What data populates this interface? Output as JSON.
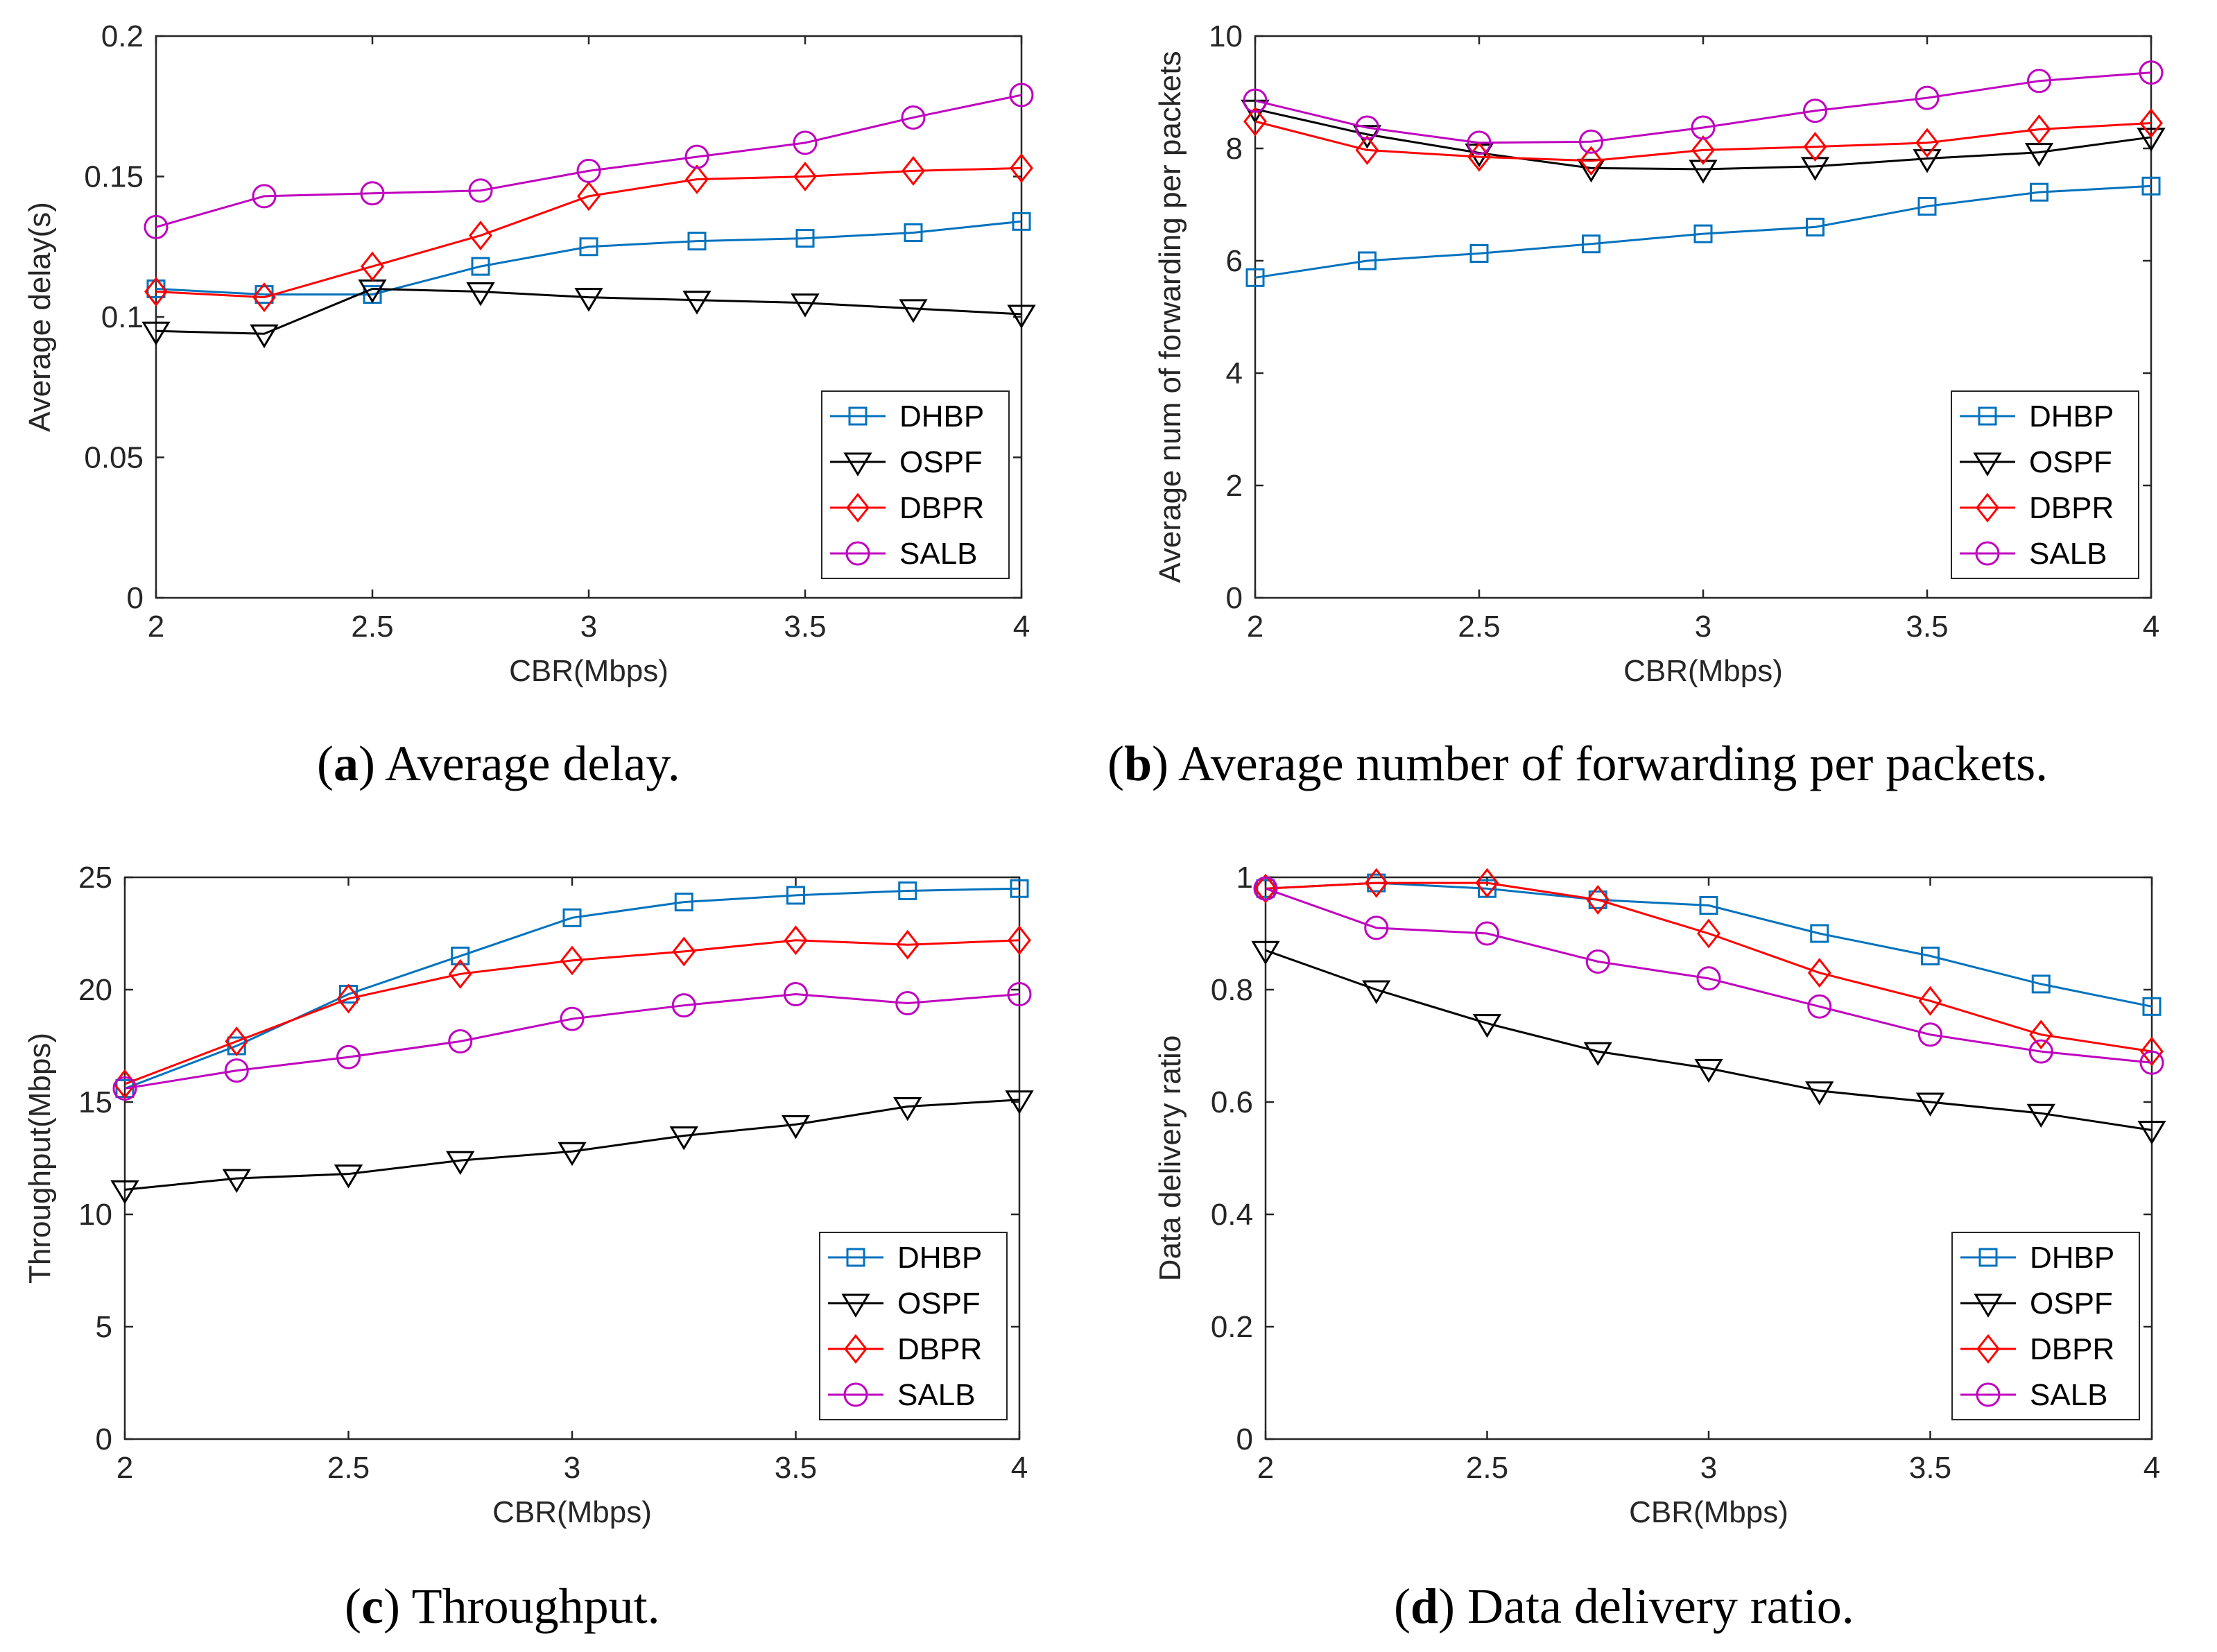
{
  "captions": [
    {
      "letter": "a",
      "text": "Average delay."
    },
    {
      "letter": "b",
      "text": "Average number of forwarding per packets."
    },
    {
      "letter": "c",
      "text": "Throughput."
    },
    {
      "letter": "d",
      "text": "Data delivery ratio."
    }
  ],
  "series_style": [
    {
      "name": "DHBP",
      "color": "#0072BD",
      "marker": "square"
    },
    {
      "name": "OSPF",
      "color": "#000000",
      "marker": "triangle-down"
    },
    {
      "name": "DBPR",
      "color": "#FF0000",
      "marker": "diamond"
    },
    {
      "name": "SALB",
      "color": "#BF00BF",
      "marker": "circle"
    }
  ],
  "chart_data": [
    {
      "type": "line",
      "title": "",
      "xlabel": "CBR(Mbps)",
      "ylabel": "Average delay(s)",
      "x": [
        2,
        2.25,
        2.5,
        2.75,
        3,
        3.25,
        3.5,
        3.75,
        4
      ],
      "xlim": [
        2,
        4
      ],
      "ylim": [
        0,
        0.2
      ],
      "xticks": [
        2,
        2.5,
        3,
        3.5,
        4
      ],
      "xtick_labels": [
        "2",
        "2.5",
        "3",
        "3.5",
        "4"
      ],
      "yticks": [
        0,
        0.05,
        0.1,
        0.15,
        0.2
      ],
      "ytick_labels": [
        "0",
        "0.05",
        "0.1",
        "0.15",
        "0.2"
      ],
      "legend_position": "bottom-right",
      "series": [
        {
          "name": "DHBP",
          "values": [
            0.11,
            0.108,
            0.108,
            0.118,
            0.125,
            0.127,
            0.128,
            0.13,
            0.134
          ]
        },
        {
          "name": "OSPF",
          "values": [
            0.095,
            0.094,
            0.11,
            0.109,
            0.107,
            0.106,
            0.105,
            0.103,
            0.101
          ]
        },
        {
          "name": "DBPR",
          "values": [
            0.109,
            0.107,
            0.118,
            0.129,
            0.143,
            0.149,
            0.15,
            0.152,
            0.153
          ]
        },
        {
          "name": "SALB",
          "values": [
            0.132,
            0.143,
            0.144,
            0.145,
            0.152,
            0.157,
            0.162,
            0.171,
            0.179
          ]
        }
      ]
    },
    {
      "type": "line",
      "title": "",
      "xlabel": "CBR(Mbps)",
      "ylabel": "Average num of forwarding per packets",
      "x": [
        2,
        2.25,
        2.5,
        2.75,
        3,
        3.25,
        3.5,
        3.75,
        4
      ],
      "xlim": [
        2,
        4
      ],
      "ylim": [
        0,
        10
      ],
      "xticks": [
        2,
        2.5,
        3,
        3.5,
        4
      ],
      "xtick_labels": [
        "2",
        "2.5",
        "3",
        "3.5",
        "4"
      ],
      "yticks": [
        0,
        2,
        4,
        6,
        8,
        10
      ],
      "ytick_labels": [
        "0",
        "2",
        "4",
        "6",
        "8",
        "10"
      ],
      "legend_position": "bottom-right",
      "series": [
        {
          "name": "DHBP",
          "values": [
            5.7,
            6.0,
            6.13,
            6.3,
            6.48,
            6.6,
            6.97,
            7.22,
            7.33
          ]
        },
        {
          "name": "OSPF",
          "values": [
            8.7,
            8.25,
            7.92,
            7.65,
            7.63,
            7.68,
            7.82,
            7.93,
            8.2
          ]
        },
        {
          "name": "DBPR",
          "values": [
            8.48,
            7.97,
            7.85,
            7.78,
            7.97,
            8.03,
            8.1,
            8.34,
            8.45
          ]
        },
        {
          "name": "SALB",
          "values": [
            8.85,
            8.37,
            8.1,
            8.12,
            8.37,
            8.67,
            8.9,
            9.2,
            9.35
          ]
        }
      ]
    },
    {
      "type": "line",
      "title": "",
      "xlabel": "CBR(Mbps)",
      "ylabel": "Throughput(Mbps)",
      "x": [
        2,
        2.25,
        2.5,
        2.75,
        3,
        3.25,
        3.5,
        3.75,
        4
      ],
      "xlim": [
        2,
        4
      ],
      "ylim": [
        0,
        25
      ],
      "xticks": [
        2,
        2.5,
        3,
        3.5,
        4
      ],
      "xtick_labels": [
        "2",
        "2.5",
        "3",
        "3.5",
        "4"
      ],
      "yticks": [
        0,
        5,
        10,
        15,
        20,
        25
      ],
      "ytick_labels": [
        "0",
        "5",
        "10",
        "15",
        "20",
        "25"
      ],
      "legend_position": "bottom-right",
      "series": [
        {
          "name": "DHBP",
          "values": [
            15.6,
            17.5,
            19.8,
            21.5,
            23.2,
            23.9,
            24.2,
            24.4,
            24.5
          ]
        },
        {
          "name": "OSPF",
          "values": [
            11.1,
            11.6,
            11.8,
            12.4,
            12.8,
            13.5,
            14.0,
            14.8,
            15.1
          ]
        },
        {
          "name": "DBPR",
          "values": [
            15.8,
            17.7,
            19.6,
            20.7,
            21.3,
            21.7,
            22.2,
            22.0,
            22.2
          ]
        },
        {
          "name": "SALB",
          "values": [
            15.6,
            16.4,
            17.0,
            17.7,
            18.7,
            19.3,
            19.8,
            19.4,
            19.8
          ]
        }
      ]
    },
    {
      "type": "line",
      "title": "",
      "xlabel": "CBR(Mbps)",
      "ylabel": "Data delivery ratio",
      "x": [
        2,
        2.25,
        2.5,
        2.75,
        3,
        3.25,
        3.5,
        3.75,
        4
      ],
      "xlim": [
        2,
        4
      ],
      "ylim": [
        0,
        1
      ],
      "xticks": [
        2,
        2.5,
        3,
        3.5,
        4
      ],
      "xtick_labels": [
        "2",
        "2.5",
        "3",
        "3.5",
        "4"
      ],
      "yticks": [
        0,
        0.2,
        0.4,
        0.6,
        0.8,
        1
      ],
      "ytick_labels": [
        "0",
        "0.2",
        "0.4",
        "0.6",
        "0.8",
        "1"
      ],
      "legend_position": "bottom-right",
      "series": [
        {
          "name": "DHBP",
          "values": [
            0.98,
            0.99,
            0.98,
            0.96,
            0.95,
            0.9,
            0.86,
            0.81,
            0.77
          ]
        },
        {
          "name": "OSPF",
          "values": [
            0.87,
            0.8,
            0.74,
            0.69,
            0.66,
            0.62,
            0.6,
            0.58,
            0.55
          ]
        },
        {
          "name": "DBPR",
          "values": [
            0.98,
            0.99,
            0.99,
            0.96,
            0.9,
            0.83,
            0.78,
            0.72,
            0.69
          ]
        },
        {
          "name": "SALB",
          "values": [
            0.98,
            0.91,
            0.9,
            0.85,
            0.82,
            0.77,
            0.72,
            0.69,
            0.67
          ]
        }
      ]
    }
  ]
}
